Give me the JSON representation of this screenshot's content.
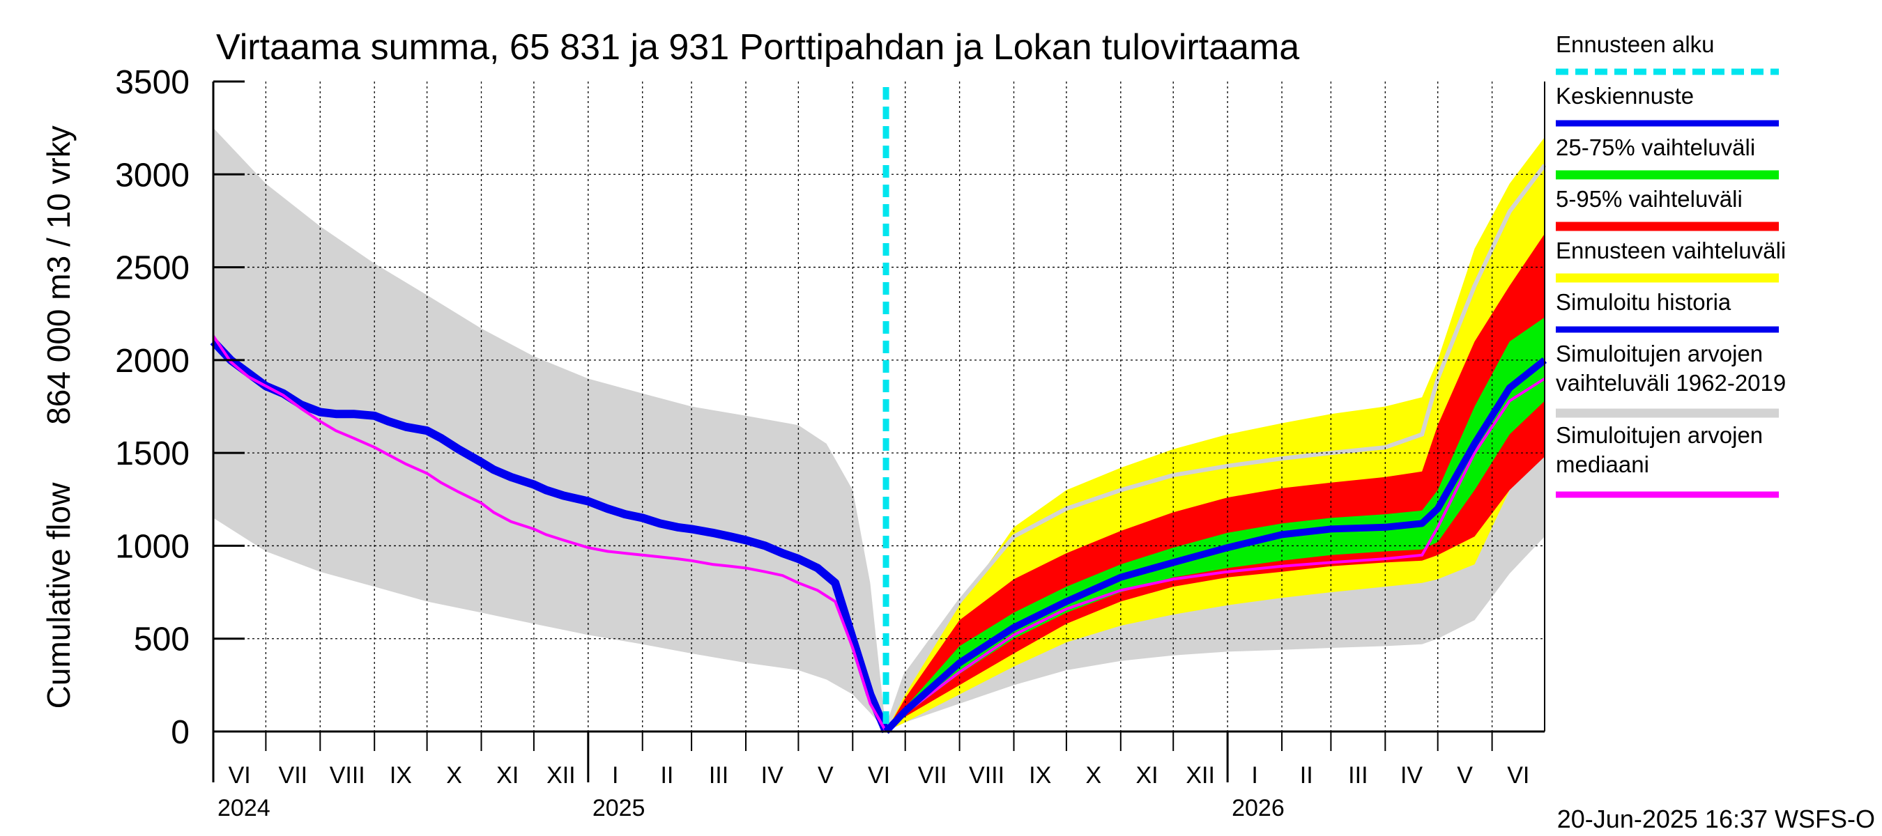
{
  "chart_data": {
    "type": "area",
    "title": "Virtaama summa, 65 831 ja 931 Porttipahdan ja Lokan tulovirtaama",
    "ylabel_line1": "864 000 m3 / 10 vrky",
    "ylabel_line2": "Cumulative flow",
    "ylim": [
      0,
      3500
    ],
    "yticks": [
      0,
      500,
      1000,
      1500,
      2000,
      2500,
      3000,
      3500
    ],
    "ytick_labels": [
      "0",
      "500",
      "1000",
      "1500",
      "2000",
      "2500",
      "3000",
      "3500"
    ],
    "x_unit": "days since 2024-06-01",
    "xlim": [
      0,
      760
    ],
    "month_boundaries": [
      0,
      30,
      61,
      92,
      122,
      153,
      183,
      214,
      245,
      273,
      304,
      334,
      365,
      395,
      426,
      457,
      487,
      518,
      548,
      579,
      610,
      638,
      669,
      699,
      730
    ],
    "month_labels": [
      {
        "label": "VI",
        "x": 0
      },
      {
        "label": "VII",
        "x": 30
      },
      {
        "label": "VIII",
        "x": 61
      },
      {
        "label": "IX",
        "x": 92
      },
      {
        "label": "X",
        "x": 122
      },
      {
        "label": "XI",
        "x": 153
      },
      {
        "label": "XII",
        "x": 183
      },
      {
        "label": "I",
        "x": 214
      },
      {
        "label": "II",
        "x": 245
      },
      {
        "label": "III",
        "x": 273
      },
      {
        "label": "IV",
        "x": 304
      },
      {
        "label": "V",
        "x": 334
      },
      {
        "label": "VI",
        "x": 365
      },
      {
        "label": "VII",
        "x": 395
      },
      {
        "label": "VIII",
        "x": 426
      },
      {
        "label": "IX",
        "x": 457
      },
      {
        "label": "X",
        "x": 487
      },
      {
        "label": "XI",
        "x": 518
      },
      {
        "label": "XII",
        "x": 548
      },
      {
        "label": "I",
        "x": 579
      },
      {
        "label": "II",
        "x": 610
      },
      {
        "label": "III",
        "x": 638
      },
      {
        "label": "IV",
        "x": 669
      },
      {
        "label": "V",
        "x": 699
      },
      {
        "label": "VI",
        "x": 730
      }
    ],
    "year_labels": [
      {
        "label": "2024",
        "x": 0
      },
      {
        "label": "2025",
        "x": 214
      },
      {
        "label": "2026",
        "x": 579
      }
    ],
    "year_separators": [
      214,
      579
    ],
    "forecast_start_x": 384,
    "timestamp": "20-Jun-2025 16:37 WSFS-O",
    "legend": [
      {
        "key": "forecast_start",
        "label": "Ennusteen alku",
        "color": "#00e5ee",
        "style": "dashed"
      },
      {
        "key": "mean",
        "label": "Keskiennuste",
        "color": "#0000ee",
        "style": "line"
      },
      {
        "key": "p25_75",
        "label": "25-75% vaihteluväli",
        "color": "#00ee00",
        "style": "band"
      },
      {
        "key": "p5_95",
        "label": "5-95% vaihteluväli",
        "color": "#ff0000",
        "style": "band"
      },
      {
        "key": "ens_range",
        "label": "Ennusteen vaihteluväli",
        "color": "#ffff00",
        "style": "band"
      },
      {
        "key": "sim_hist",
        "label": "Simuloitu historia",
        "color": "#0000ee",
        "style": "line"
      },
      {
        "key": "sim_range",
        "label": "Simuloitujen arvojen",
        "label2": "vaihteluväli 1962-2019",
        "color": "#d3d3d3",
        "style": "band"
      },
      {
        "key": "sim_median",
        "label": "Simuloitujen arvojen",
        "label2": "mediaani",
        "color": "#ff00ff",
        "style": "line"
      }
    ],
    "series": [
      {
        "name": "Simuloitujen arvojen vaihteluväli 1962-2019 (max)",
        "x": [
          0,
          30,
          61,
          92,
          122,
          153,
          183,
          214,
          245,
          273,
          304,
          334,
          350,
          365,
          375,
          384
        ],
        "values": [
          3250,
          2950,
          2720,
          2520,
          2350,
          2170,
          2020,
          1900,
          1820,
          1750,
          1700,
          1650,
          1550,
          1300,
          800,
          0
        ]
      },
      {
        "name": "Simuloitujen arvojen vaihteluväli 1962-2019 (min)",
        "x": [
          0,
          30,
          61,
          92,
          122,
          153,
          183,
          214,
          245,
          273,
          304,
          334,
          350,
          365,
          375,
          384
        ],
        "values": [
          1150,
          970,
          860,
          780,
          700,
          640,
          580,
          520,
          470,
          420,
          370,
          330,
          280,
          200,
          100,
          0
        ]
      },
      {
        "name": "Simuloitu historia",
        "x": [
          0,
          10,
          20,
          30,
          40,
          50,
          61,
          70,
          80,
          92,
          100,
          110,
          122,
          130,
          140,
          153,
          160,
          170,
          183,
          190,
          200,
          214,
          225,
          235,
          245,
          255,
          265,
          273,
          285,
          295,
          304,
          315,
          325,
          334,
          345,
          355,
          365,
          375,
          384
        ],
        "values": [
          2100,
          2000,
          1930,
          1860,
          1820,
          1760,
          1720,
          1710,
          1710,
          1700,
          1670,
          1640,
          1620,
          1580,
          1520,
          1450,
          1410,
          1370,
          1330,
          1300,
          1270,
          1240,
          1200,
          1170,
          1150,
          1120,
          1100,
          1090,
          1070,
          1050,
          1030,
          1000,
          960,
          930,
          880,
          800,
          500,
          200,
          0
        ]
      },
      {
        "name": "Simuloitujen arvojen mediaani",
        "x": [
          0,
          10,
          20,
          30,
          40,
          50,
          61,
          70,
          80,
          92,
          100,
          110,
          122,
          130,
          140,
          153,
          160,
          170,
          183,
          190,
          200,
          214,
          225,
          235,
          245,
          255,
          265,
          273,
          285,
          295,
          304,
          315,
          325,
          334,
          345,
          355,
          365,
          375,
          384
        ],
        "values": [
          2130,
          1990,
          1910,
          1860,
          1810,
          1740,
          1670,
          1620,
          1580,
          1530,
          1490,
          1440,
          1390,
          1340,
          1290,
          1230,
          1180,
          1130,
          1090,
          1060,
          1030,
          990,
          970,
          960,
          950,
          940,
          930,
          920,
          900,
          890,
          880,
          860,
          840,
          800,
          760,
          700,
          450,
          150,
          0
        ]
      },
      {
        "name": "Simuloitujen arvojen vaihteluväli 1962-2019 (forecast max)",
        "x": [
          384,
          395,
          426,
          457,
          487,
          518,
          548,
          579,
          610,
          638,
          669,
          690,
          699,
          720,
          740,
          760
        ],
        "values": [
          0,
          300,
          700,
          1050,
          1200,
          1300,
          1380,
          1430,
          1470,
          1500,
          1530,
          1600,
          1900,
          2400,
          2800,
          3050
        ]
      },
      {
        "name": "Simuloitujen arvojen vaihteluväli 1962-2019 (forecast min)",
        "x": [
          384,
          395,
          426,
          457,
          487,
          518,
          548,
          579,
          610,
          638,
          669,
          690,
          699,
          720,
          740,
          760
        ],
        "values": [
          0,
          50,
          150,
          250,
          330,
          380,
          410,
          430,
          440,
          450,
          460,
          470,
          500,
          600,
          850,
          1050
        ]
      },
      {
        "name": "Ennusteen vaihteluväli (max)",
        "x": [
          384,
          395,
          426,
          457,
          487,
          518,
          548,
          579,
          610,
          638,
          669,
          690,
          699,
          720,
          740,
          760
        ],
        "values": [
          0,
          200,
          680,
          1100,
          1300,
          1420,
          1520,
          1600,
          1660,
          1710,
          1750,
          1800,
          2000,
          2600,
          2950,
          3200
        ]
      },
      {
        "name": "Ennusteen vaihteluväli (min)",
        "x": [
          384,
          395,
          426,
          457,
          487,
          518,
          548,
          579,
          610,
          638,
          669,
          690,
          699,
          720,
          740,
          760
        ],
        "values": [
          0,
          50,
          200,
          350,
          480,
          570,
          630,
          680,
          720,
          750,
          780,
          800,
          820,
          900,
          1300,
          1500
        ]
      },
      {
        "name": "5-95% vaihteluväli (upper)",
        "x": [
          384,
          395,
          426,
          457,
          487,
          518,
          548,
          579,
          610,
          638,
          669,
          690,
          699,
          720,
          740,
          760
        ],
        "values": [
          0,
          180,
          600,
          820,
          960,
          1080,
          1180,
          1260,
          1310,
          1340,
          1370,
          1400,
          1650,
          2100,
          2400,
          2680
        ]
      },
      {
        "name": "5-95% vaihteluväli (lower)",
        "x": [
          384,
          395,
          426,
          457,
          487,
          518,
          548,
          579,
          610,
          638,
          669,
          690,
          699,
          720,
          740,
          760
        ],
        "values": [
          0,
          80,
          250,
          420,
          580,
          700,
          780,
          830,
          860,
          890,
          910,
          920,
          950,
          1050,
          1300,
          1480
        ]
      },
      {
        "name": "25-75% vaihteluväli (upper)",
        "x": [
          384,
          395,
          426,
          457,
          487,
          518,
          548,
          579,
          610,
          638,
          669,
          690,
          699,
          720,
          740,
          760
        ],
        "values": [
          0,
          130,
          460,
          640,
          780,
          900,
          990,
          1070,
          1120,
          1150,
          1170,
          1190,
          1300,
          1750,
          2100,
          2230
        ]
      },
      {
        "name": "25-75% vaihteluväli (lower)",
        "x": [
          384,
          395,
          426,
          457,
          487,
          518,
          548,
          579,
          610,
          638,
          669,
          690,
          699,
          720,
          740,
          760
        ],
        "values": [
          0,
          90,
          310,
          500,
          640,
          750,
          830,
          880,
          920,
          950,
          970,
          980,
          1020,
          1300,
          1600,
          1780
        ]
      },
      {
        "name": "Simuloitujen arvojen mediaani (forecast)",
        "x": [
          384,
          395,
          426,
          457,
          487,
          518,
          548,
          579,
          610,
          638,
          669,
          690,
          699,
          720,
          740,
          760
        ],
        "values": [
          0,
          100,
          320,
          520,
          660,
          760,
          820,
          860,
          890,
          910,
          930,
          950,
          1100,
          1500,
          1780,
          1900
        ]
      },
      {
        "name": "Keskiennuste",
        "x": [
          384,
          395,
          426,
          457,
          487,
          518,
          548,
          579,
          610,
          638,
          669,
          690,
          699,
          720,
          740,
          760
        ],
        "values": [
          0,
          110,
          370,
          560,
          700,
          830,
          910,
          990,
          1060,
          1090,
          1100,
          1120,
          1200,
          1550,
          1850,
          2000
        ]
      }
    ]
  }
}
